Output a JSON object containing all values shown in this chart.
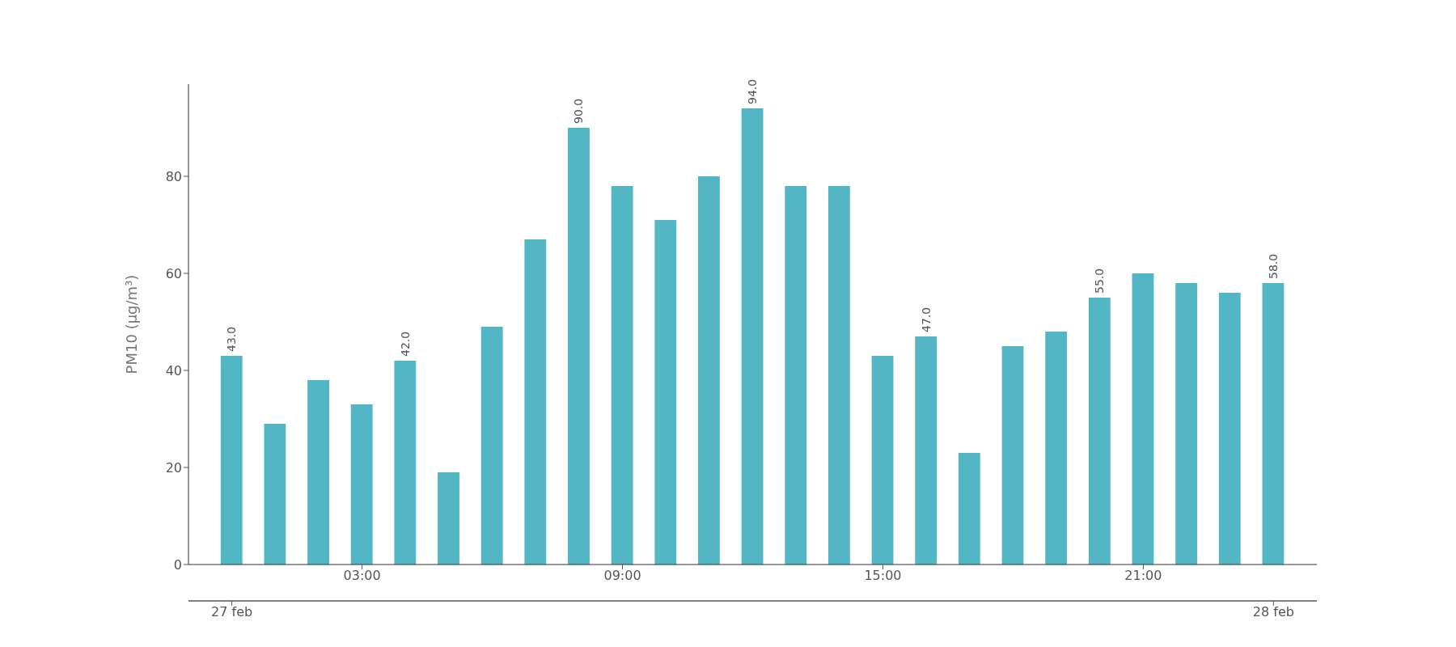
{
  "chart_data": {
    "type": "bar",
    "ylabel": "PM10 (μg/m³)",
    "color": "#52b6c4",
    "x": [
      "--02-27T00:00",
      "--02-27T01:00",
      "--02-27T02:00",
      "--02-27T03:00",
      "--02-27T04:00",
      "--02-27T05:00",
      "--02-27T06:00",
      "--02-27T07:00",
      "--02-27T08:00",
      "--02-27T09:00",
      "--02-27T10:00",
      "--02-27T11:00",
      "--02-27T12:00",
      "--02-27T13:00",
      "--02-27T14:00",
      "--02-27T15:00",
      "--02-27T16:00",
      "--02-27T17:00",
      "--02-27T18:00",
      "--02-27T19:00",
      "--02-27T20:00",
      "--02-27T21:00",
      "--02-27T22:00",
      "--02-27T23:00",
      "--02-28T00:00"
    ],
    "values": [
      43,
      29,
      38,
      33,
      42,
      19,
      49,
      67,
      90,
      78,
      71,
      80,
      94,
      78,
      78,
      43,
      47,
      23,
      45,
      48,
      55,
      60,
      58,
      56,
      58
    ],
    "value_labels": [
      "43.0",
      null,
      null,
      null,
      "42.0",
      null,
      null,
      null,
      "90.0",
      null,
      null,
      null,
      "94.0",
      null,
      null,
      null,
      "47.0",
      null,
      null,
      null,
      "55.0",
      null,
      null,
      null,
      "58.0"
    ],
    "xlim": [
      "--02-26T23:00",
      "--02-28T01:00"
    ],
    "xticks": [
      {
        "value": "--02-27T03:00",
        "label": "03:00"
      },
      {
        "value": "--02-27T09:00",
        "label": "09:00"
      },
      {
        "value": "--02-27T15:00",
        "label": "15:00"
      },
      {
        "value": "--02-27T21:00",
        "label": "21:00"
      }
    ],
    "x2lim": [
      "--02-26T23:00",
      "--02-28T01:00"
    ],
    "x2ticks": [
      {
        "value": "--02-27",
        "label": "27 feb"
      },
      {
        "value": "--02-28",
        "label": "28 feb"
      }
    ],
    "ylim": [
      0,
      99
    ],
    "yticks": [
      0,
      20,
      40,
      60,
      80
    ],
    "grid": false,
    "legend": false
  }
}
